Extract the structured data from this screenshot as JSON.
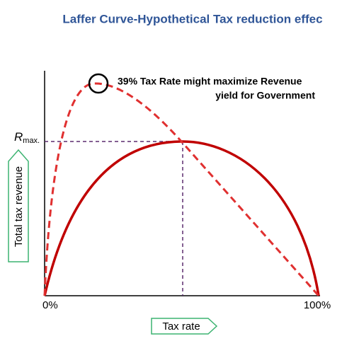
{
  "title": "Laffer Curve-Hypothetical Tax reduction effec",
  "annotation": {
    "line1": "39% Tax Rate might maximize Revenue",
    "line2": "yield for Government"
  },
  "y_axis": {
    "label": "Total tax revenue",
    "max_label": {
      "main": "R",
      "sub": "max."
    }
  },
  "x_axis": {
    "label": "Tax rate",
    "start": "0%",
    "end": "100%"
  }
}
